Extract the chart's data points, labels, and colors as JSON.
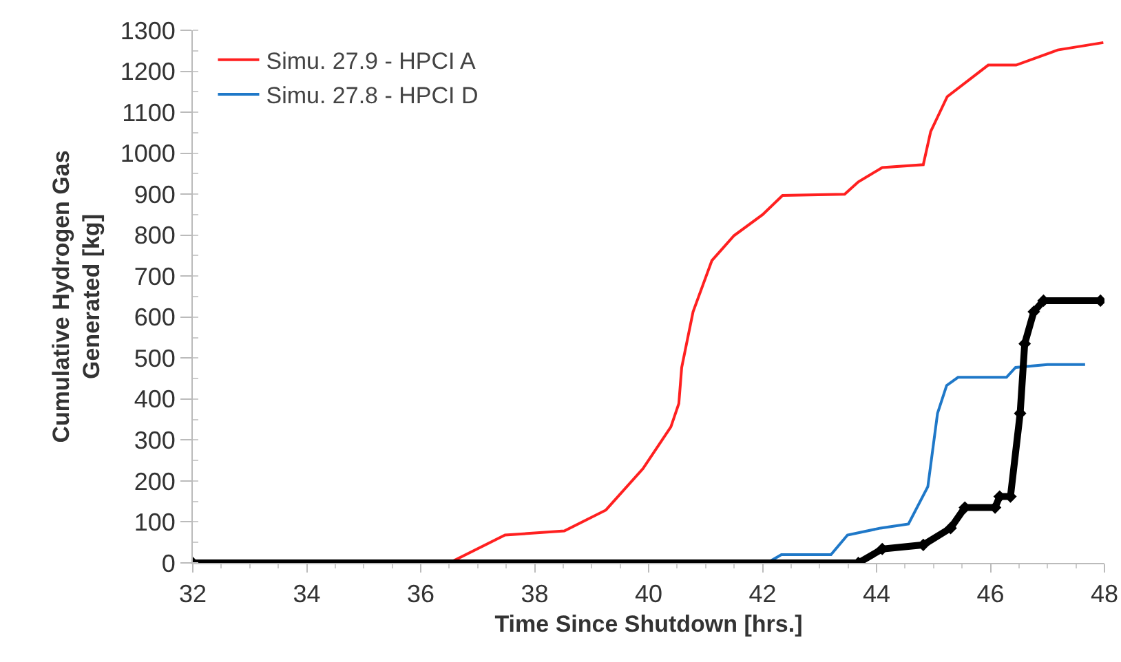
{
  "chart_data": {
    "type": "line",
    "xlabel": "Time Since Shutdown [hrs.]",
    "ylabel": "Cumulative Hydrogen Gas Generated [kg]",
    "xlim": [
      32,
      48
    ],
    "xticks": [
      32,
      34,
      36,
      38,
      40,
      42,
      44,
      46,
      48
    ],
    "ylim": [
      0,
      1300
    ],
    "yticks": [
      0,
      100,
      200,
      300,
      400,
      500,
      600,
      700,
      800,
      900,
      1000,
      1100,
      1200,
      1300
    ],
    "grid": false,
    "legend": "top left",
    "series": [
      {
        "name": "Simu. 27.9 - HPCI A",
        "color": "#ff2020",
        "x": [
          32,
          36.5,
          37.48,
          38.52,
          39.25,
          39.9,
          40.39,
          40.53,
          40.58,
          40.78,
          41.11,
          41.5,
          42.0,
          42.35,
          43.44,
          43.68,
          44.1,
          44.82,
          44.95,
          45.24,
          45.96,
          46.45,
          47.18,
          47.98
        ],
        "values": [
          0,
          0,
          68,
          78,
          129,
          230,
          332,
          389,
          477,
          613,
          738,
          799,
          850,
          897,
          900,
          930,
          965,
          972,
          1053,
          1138,
          1215,
          1215,
          1252,
          1270
        ]
      },
      {
        "name": "Simu. 27.8 - HPCI D",
        "color": "#1f78c8",
        "x": [
          42.08,
          42.33,
          43.2,
          43.49,
          44.07,
          44.56,
          44.9,
          45.07,
          45.23,
          45.43,
          46.28,
          46.44,
          47.0,
          47.66
        ],
        "values": [
          0,
          20,
          20,
          68,
          85,
          95,
          186,
          365,
          433,
          453,
          453,
          477,
          484,
          484
        ]
      },
      {
        "color": "#000000",
        "marker": "diamond",
        "x": [
          32,
          43.68,
          44.1,
          44.82,
          45.3,
          45.55,
          46.08,
          46.16,
          46.35,
          46.52,
          46.6,
          46.76,
          46.93,
          47.93
        ],
        "values": [
          0,
          0,
          34,
          44,
          85,
          135,
          135,
          162,
          162,
          365,
          535,
          613,
          640,
          640
        ]
      }
    ]
  }
}
